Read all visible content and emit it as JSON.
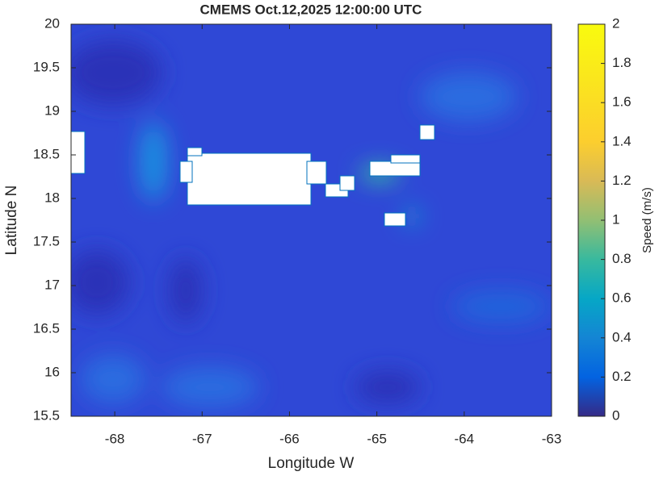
{
  "chart_data": {
    "type": "heatmap",
    "title": "CMEMS Oct.12,2025 12:00:00 UTC",
    "x_label": "Longitude W",
    "y_label": "Latitude N",
    "xlim": [
      -68.5,
      -63
    ],
    "xticks": [
      -68,
      -67,
      -66,
      -65,
      -64,
      -63
    ],
    "ylim": [
      15.5,
      20
    ],
    "yticks": [
      15.5,
      16,
      16.5,
      17,
      17.5,
      18,
      18.5,
      19,
      19.5,
      20
    ],
    "colorbar_label": "Speed (m/s)",
    "clim": [
      0,
      2
    ],
    "cticks": [
      0,
      0.2,
      0.4,
      0.6,
      0.8,
      1,
      1.2,
      1.4,
      1.6,
      1.8,
      2
    ]
  }
}
